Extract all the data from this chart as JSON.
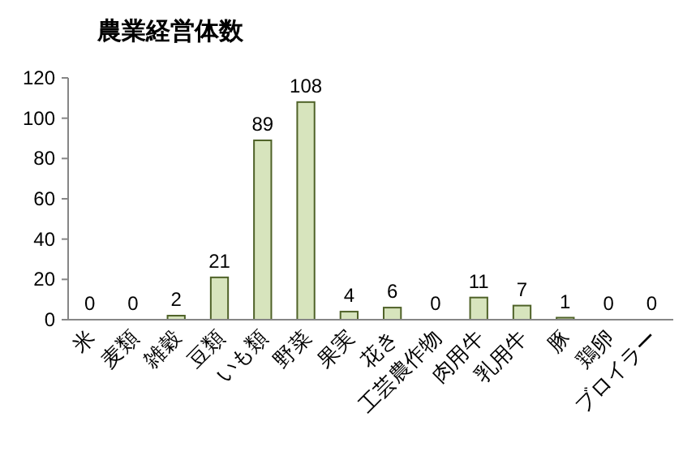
{
  "chart_data": {
    "type": "bar",
    "title": "農業経営体数",
    "categories": [
      "米",
      "麦類",
      "雑穀",
      "豆類",
      "いも類",
      "野菜",
      "果実",
      "花き",
      "工芸農作物",
      "肉用牛",
      "乳用牛",
      "豚",
      "鶏卵",
      "ブロイラー"
    ],
    "values": [
      0,
      0,
      2,
      21,
      89,
      108,
      4,
      6,
      0,
      11,
      7,
      1,
      0,
      0
    ],
    "color": "#d7e4bd",
    "ylim": [
      0,
      120
    ],
    "yticks": [
      0,
      20,
      40,
      60,
      80,
      100,
      120
    ],
    "data_labels": true,
    "grid": false
  }
}
